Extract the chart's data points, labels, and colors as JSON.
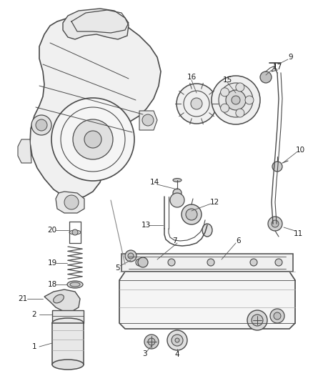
{
  "bg_color": "#ffffff",
  "line_color": "#4a4a4a",
  "label_color": "#1a1a1a",
  "label_fontsize": 7.5,
  "fig_width": 4.38,
  "fig_height": 5.33,
  "dpi": 100
}
